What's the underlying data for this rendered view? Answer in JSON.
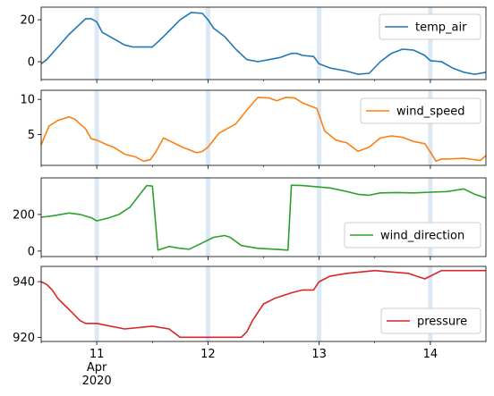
{
  "chart_data": [
    {
      "type": "line",
      "series": [
        {
          "name": "temp_air",
          "color": "#1f77b4",
          "points": [
            [
              10.5,
              -1
            ],
            [
              10.55,
              1
            ],
            [
              10.65,
              7
            ],
            [
              10.75,
              13
            ],
            [
              10.85,
              18
            ],
            [
              10.9,
              20.5
            ],
            [
              10.95,
              20.5
            ],
            [
              11.0,
              19
            ],
            [
              11.05,
              14
            ],
            [
              11.15,
              11
            ],
            [
              11.25,
              8
            ],
            [
              11.33,
              7
            ],
            [
              11.5,
              7
            ],
            [
              11.6,
              12
            ],
            [
              11.75,
              20
            ],
            [
              11.85,
              23.5
            ],
            [
              11.95,
              23
            ],
            [
              12.0,
              20
            ],
            [
              12.05,
              16
            ],
            [
              12.15,
              12
            ],
            [
              12.25,
              6
            ],
            [
              12.35,
              1
            ],
            [
              12.45,
              0
            ],
            [
              12.55,
              1
            ],
            [
              12.65,
              2
            ],
            [
              12.75,
              4
            ],
            [
              12.8,
              4
            ],
            [
              12.85,
              3
            ],
            [
              12.95,
              2.5
            ],
            [
              13.0,
              -1
            ],
            [
              13.1,
              -3
            ],
            [
              13.25,
              -4.5
            ],
            [
              13.35,
              -6
            ],
            [
              13.45,
              -5.5
            ],
            [
              13.55,
              0
            ],
            [
              13.65,
              4
            ],
            [
              13.75,
              6
            ],
            [
              13.85,
              5.5
            ],
            [
              13.95,
              3
            ],
            [
              14.0,
              0.5
            ],
            [
              14.1,
              0
            ],
            [
              14.2,
              -3
            ],
            [
              14.3,
              -5
            ],
            [
              14.4,
              -6
            ],
            [
              14.5,
              -5
            ]
          ]
        }
      ],
      "ylim": [
        -8.5,
        26
      ],
      "yticks": [
        0,
        20
      ]
    },
    {
      "type": "line",
      "series": [
        {
          "name": "wind_speed",
          "color": "#ff7f0e",
          "points": [
            [
              10.5,
              3.5
            ],
            [
              10.57,
              6.2
            ],
            [
              10.65,
              7
            ],
            [
              10.75,
              7.5
            ],
            [
              10.8,
              7.2
            ],
            [
              10.9,
              5.8
            ],
            [
              10.95,
              4.4
            ],
            [
              11.0,
              4.2
            ],
            [
              11.08,
              3.6
            ],
            [
              11.15,
              3.2
            ],
            [
              11.25,
              2.2
            ],
            [
              11.35,
              1.8
            ],
            [
              11.42,
              1.2
            ],
            [
              11.48,
              1.4
            ],
            [
              11.53,
              2.5
            ],
            [
              11.6,
              4.5
            ],
            [
              11.68,
              3.9
            ],
            [
              11.77,
              3.2
            ],
            [
              11.9,
              2.4
            ],
            [
              11.95,
              2.6
            ],
            [
              12.0,
              3.2
            ],
            [
              12.1,
              5.2
            ],
            [
              12.25,
              6.5
            ],
            [
              12.35,
              8.5
            ],
            [
              12.45,
              10.3
            ],
            [
              12.55,
              10.2
            ],
            [
              12.62,
              9.8
            ],
            [
              12.7,
              10.3
            ],
            [
              12.78,
              10.2
            ],
            [
              12.85,
              9.5
            ],
            [
              12.98,
              8.7
            ],
            [
              13.05,
              5.5
            ],
            [
              13.15,
              4.2
            ],
            [
              13.25,
              3.8
            ],
            [
              13.35,
              2.6
            ],
            [
              13.45,
              3.2
            ],
            [
              13.55,
              4.5
            ],
            [
              13.65,
              4.8
            ],
            [
              13.75,
              4.6
            ],
            [
              13.85,
              4
            ],
            [
              13.95,
              3.7
            ],
            [
              14.0,
              2.5
            ],
            [
              14.05,
              1.2
            ],
            [
              14.1,
              1.5
            ],
            [
              14.15,
              1.5
            ],
            [
              14.3,
              1.6
            ],
            [
              14.45,
              1.3
            ],
            [
              14.5,
              2
            ]
          ]
        }
      ],
      "ylim": [
        0.6,
        11.3
      ],
      "yticks": [
        5,
        10
      ]
    },
    {
      "type": "line",
      "series": [
        {
          "name": "wind_direction",
          "color": "#2ca02c",
          "points": [
            [
              10.5,
              185
            ],
            [
              10.6,
              192
            ],
            [
              10.75,
              208
            ],
            [
              10.85,
              200
            ],
            [
              10.95,
              182
            ],
            [
              11.0,
              165
            ],
            [
              11.1,
              180
            ],
            [
              11.2,
              200
            ],
            [
              11.3,
              240
            ],
            [
              11.4,
              320
            ],
            [
              11.45,
              358
            ],
            [
              11.5,
              355
            ],
            [
              11.55,
              5
            ],
            [
              11.65,
              25
            ],
            [
              11.75,
              15
            ],
            [
              11.83,
              10
            ],
            [
              11.95,
              45
            ],
            [
              12.05,
              75
            ],
            [
              12.15,
              85
            ],
            [
              12.2,
              75
            ],
            [
              12.3,
              30
            ],
            [
              12.45,
              15
            ],
            [
              12.6,
              10
            ],
            [
              12.72,
              5
            ],
            [
              12.75,
              360
            ],
            [
              12.85,
              358
            ],
            [
              13.0,
              350
            ],
            [
              13.1,
              345
            ],
            [
              13.25,
              325
            ],
            [
              13.35,
              310
            ],
            [
              13.45,
              305
            ],
            [
              13.55,
              318
            ],
            [
              13.7,
              320
            ],
            [
              13.85,
              318
            ],
            [
              14.0,
              322
            ],
            [
              14.15,
              325
            ],
            [
              14.3,
              340
            ],
            [
              14.4,
              310
            ],
            [
              14.5,
              290
            ]
          ]
        }
      ],
      "ylim": [
        -30,
        400
      ],
      "yticks": [
        0,
        200
      ]
    },
    {
      "type": "line",
      "series": [
        {
          "name": "pressure",
          "color": "#d62728",
          "points": [
            [
              10.5,
              940
            ],
            [
              10.55,
              939
            ],
            [
              10.6,
              937
            ],
            [
              10.65,
              934
            ],
            [
              10.7,
              932
            ],
            [
              10.75,
              930
            ],
            [
              10.8,
              928
            ],
            [
              10.85,
              926
            ],
            [
              10.9,
              925
            ],
            [
              11.0,
              925
            ],
            [
              11.25,
              923
            ],
            [
              11.5,
              924
            ],
            [
              11.65,
              923
            ],
            [
              11.75,
              920
            ],
            [
              12.0,
              920
            ],
            [
              12.3,
              920
            ],
            [
              12.35,
              922
            ],
            [
              12.4,
              926
            ],
            [
              12.5,
              932
            ],
            [
              12.6,
              934
            ],
            [
              12.75,
              936
            ],
            [
              12.85,
              937
            ],
            [
              12.95,
              937
            ],
            [
              13.0,
              940
            ],
            [
              13.1,
              942
            ],
            [
              13.25,
              943
            ],
            [
              13.5,
              944
            ],
            [
              13.8,
              943
            ],
            [
              13.95,
              941
            ],
            [
              14.0,
              942
            ],
            [
              14.1,
              944
            ],
            [
              14.35,
              944
            ],
            [
              14.45,
              944
            ],
            [
              14.5,
              944
            ]
          ]
        }
      ],
      "ylim": [
        918.5,
        945.5
      ],
      "yticks": [
        920,
        940
      ]
    }
  ],
  "shared_x": {
    "xlim": [
      10.5,
      14.5
    ],
    "major_ticks": [
      11,
      12,
      13,
      14
    ],
    "minor_ticks": [
      10.5,
      11.5,
      12.5,
      13.5
    ],
    "tick_labels": [
      "11",
      "12",
      "13",
      "14"
    ],
    "sub_label_1": "Apr",
    "sub_label_2": "2020"
  },
  "span_color": "#dbe8f5"
}
